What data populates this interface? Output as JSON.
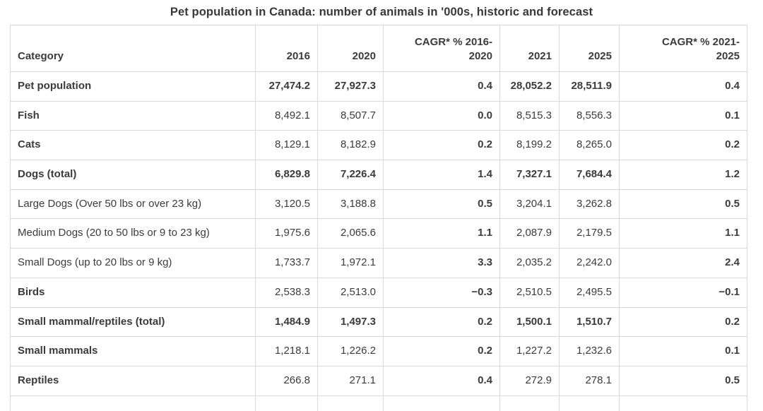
{
  "title": "Pet population in Canada: number of animals in '000s, historic and forecast",
  "table": {
    "columns": [
      {
        "key": "category",
        "label": "Category",
        "align": "left",
        "bold_values": false
      },
      {
        "key": "y2016",
        "label": "2016",
        "align": "right",
        "bold_values": false
      },
      {
        "key": "y2020",
        "label": "2020",
        "align": "right",
        "bold_values": false
      },
      {
        "key": "cagr_2016_2020",
        "label": "CAGR* % 2016-\n2020",
        "align": "right",
        "bold_values": true
      },
      {
        "key": "y2021",
        "label": "2021",
        "align": "right",
        "bold_values": false
      },
      {
        "key": "y2025",
        "label": "2025",
        "align": "right",
        "bold_values": false
      },
      {
        "key": "cagr_2021_2025",
        "label": "CAGR* % 2021-\n2025",
        "align": "right",
        "bold_values": true
      }
    ],
    "rows": [
      {
        "category": "Pet population",
        "bold_label": true,
        "bold_values": true,
        "values": [
          "27,474.2",
          "27,927.3",
          "0.4",
          "28,052.2",
          "28,511.9",
          "0.4"
        ]
      },
      {
        "category": "Fish",
        "bold_label": true,
        "bold_values": false,
        "values": [
          "8,492.1",
          "8,507.7",
          "0.0",
          "8,515.3",
          "8,556.3",
          "0.1"
        ]
      },
      {
        "category": "Cats",
        "bold_label": true,
        "bold_values": false,
        "values": [
          "8,129.1",
          "8,182.9",
          "0.2",
          "8,199.2",
          "8,265.0",
          "0.2"
        ]
      },
      {
        "category": "Dogs (total)",
        "bold_label": true,
        "bold_values": true,
        "values": [
          "6,829.8",
          "7,226.4",
          "1.4",
          "7,327.1",
          "7,684.4",
          "1.2"
        ]
      },
      {
        "category": "Large Dogs (Over 50 lbs or over 23 kg)",
        "bold_label": false,
        "bold_values": false,
        "values": [
          "3,120.5",
          "3,188.8",
          "0.5",
          "3,204.1",
          "3,262.8",
          "0.5"
        ]
      },
      {
        "category": "Medium Dogs (20 to 50 lbs or 9 to 23 kg)",
        "bold_label": false,
        "bold_values": false,
        "values": [
          "1,975.6",
          "2,065.6",
          "1.1",
          "2,087.9",
          "2,179.5",
          "1.1"
        ]
      },
      {
        "category": "Small Dogs (up to 20 lbs or 9 kg)",
        "bold_label": false,
        "bold_values": false,
        "values": [
          "1,733.7",
          "1,972.1",
          "3.3",
          "2,035.2",
          "2,242.0",
          "2.4"
        ]
      },
      {
        "category": "Birds",
        "bold_label": true,
        "bold_values": false,
        "values": [
          "2,538.3",
          "2,513.0",
          "−0.3",
          "2,510.5",
          "2,495.5",
          "−0.1"
        ]
      },
      {
        "category": "Small mammal/reptiles (total)",
        "bold_label": true,
        "bold_values": true,
        "values": [
          "1,484.9",
          "1,497.3",
          "0.2",
          "1,500.1",
          "1,510.7",
          "0.2"
        ]
      },
      {
        "category": "Small mammals",
        "bold_label": true,
        "bold_values": false,
        "values": [
          "1,218.1",
          "1,226.2",
          "0.2",
          "1,227.2",
          "1,232.6",
          "0.1"
        ]
      },
      {
        "category": "Reptiles",
        "bold_label": true,
        "bold_values": false,
        "values": [
          "266.8",
          "271.1",
          "0.4",
          "272.9",
          "278.1",
          "0.5"
        ]
      }
    ]
  },
  "colors": {
    "text": "#3b3b3b",
    "title": "#383838",
    "border": "#d8d8d8",
    "background": "#ffffff"
  },
  "chart_data": {
    "type": "table",
    "title": "Pet population in Canada: number of animals in '000s, historic and forecast",
    "unit": "thousands of animals",
    "categories": [
      "Pet population",
      "Fish",
      "Cats",
      "Dogs (total)",
      "Large Dogs (Over 50 lbs or over 23 kg)",
      "Medium Dogs (20 to 50 lbs or 9 to 23 kg)",
      "Small Dogs (up to 20 lbs or 9 kg)",
      "Birds",
      "Small mammal/reptiles (total)",
      "Small mammals",
      "Reptiles"
    ],
    "series": [
      {
        "name": "2016",
        "values": [
          27474.2,
          8492.1,
          8129.1,
          6829.8,
          3120.5,
          1975.6,
          1733.7,
          2538.3,
          1484.9,
          1218.1,
          266.8
        ]
      },
      {
        "name": "2020",
        "values": [
          27927.3,
          8507.7,
          8182.9,
          7226.4,
          3188.8,
          2065.6,
          1972.1,
          2513.0,
          1497.3,
          1226.2,
          271.1
        ]
      },
      {
        "name": "CAGR* % 2016-2020",
        "values": [
          0.4,
          0.0,
          0.2,
          1.4,
          0.5,
          1.1,
          3.3,
          -0.3,
          0.2,
          0.2,
          0.4
        ]
      },
      {
        "name": "2021",
        "values": [
          28052.2,
          8515.3,
          8199.2,
          7327.1,
          3204.1,
          2087.9,
          2035.2,
          2510.5,
          1500.1,
          1227.2,
          272.9
        ]
      },
      {
        "name": "2025",
        "values": [
          28511.9,
          8556.3,
          8265.0,
          7684.4,
          3262.8,
          2179.5,
          2242.0,
          2495.5,
          1510.7,
          1232.6,
          278.1
        ]
      },
      {
        "name": "CAGR* % 2021-2025",
        "values": [
          0.4,
          0.1,
          0.2,
          1.2,
          0.5,
          1.1,
          2.4,
          -0.1,
          0.2,
          0.1,
          0.5
        ]
      }
    ]
  }
}
